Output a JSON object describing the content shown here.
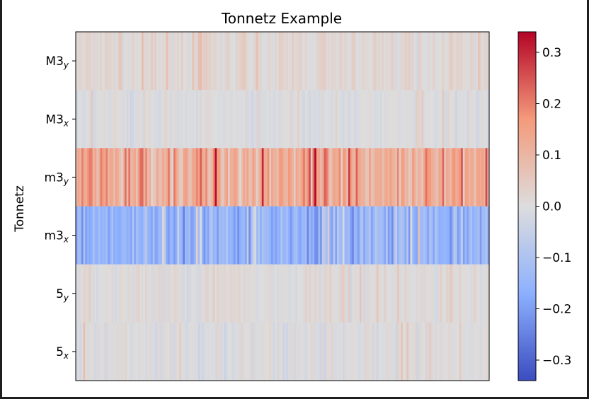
{
  "chart_data": {
    "type": "heatmap",
    "title": "Tonnetz Example",
    "ylabel": "Tonnetz",
    "xlabel": "",
    "colormap": "coolwarm",
    "rows": [
      {
        "base": "M3",
        "sub": "y",
        "mean": 0.015,
        "spread": 0.04
      },
      {
        "base": "M3",
        "sub": "x",
        "mean": -0.005,
        "spread": 0.035
      },
      {
        "base": "m3",
        "sub": "y",
        "mean": 0.12,
        "spread": 0.14
      },
      {
        "base": "m3",
        "sub": "x",
        "mean": -0.15,
        "spread": 0.12
      },
      {
        "base": "5",
        "sub": "y",
        "mean": 0.005,
        "spread": 0.04
      },
      {
        "base": "5",
        "sub": "x",
        "mean": -0.005,
        "spread": 0.045
      }
    ],
    "n_frames": 220,
    "colorbar": {
      "vmin": -0.34,
      "vmax": 0.34,
      "ticks": [
        0.3,
        0.2,
        0.1,
        0.0,
        -0.1,
        -0.2,
        -0.3
      ],
      "tick_labels": [
        "0.3",
        "0.2",
        "0.1",
        "0.0",
        "−0.1",
        "−0.2",
        "−0.3"
      ]
    }
  }
}
